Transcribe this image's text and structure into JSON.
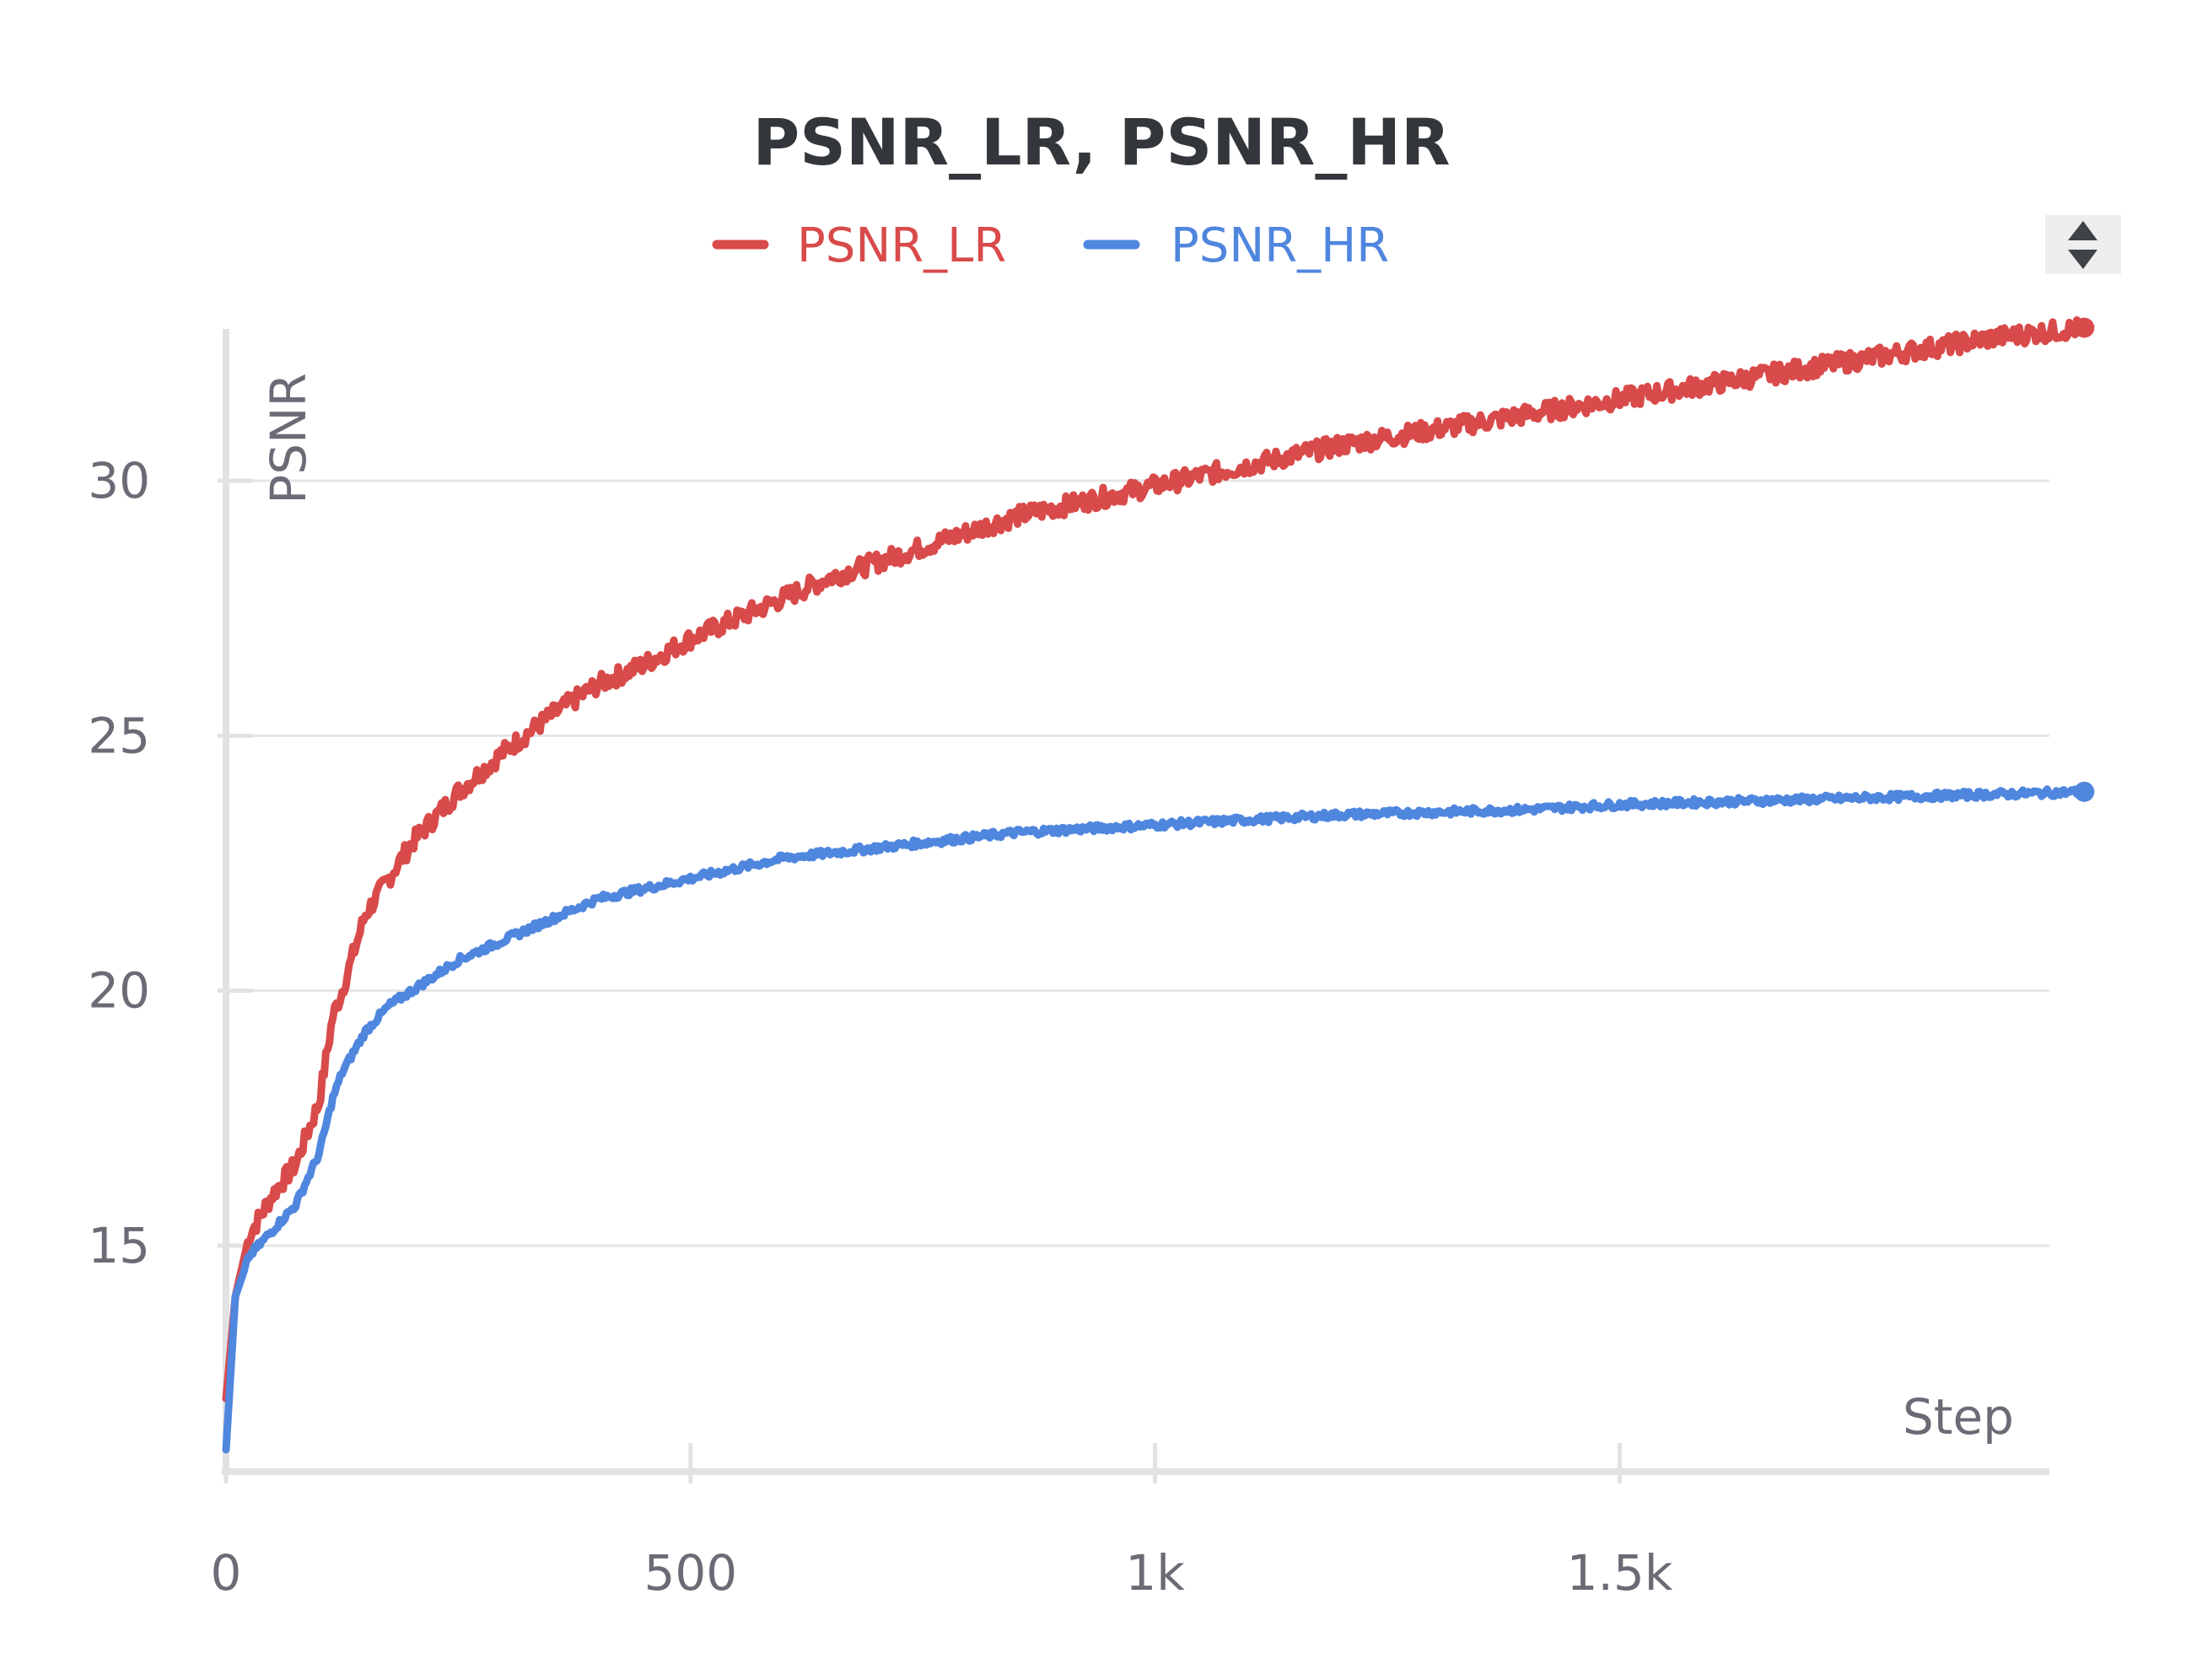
{
  "chart_data": {
    "type": "line",
    "title": "PSNR_LR, PSNR_HR",
    "xlabel": "Step",
    "ylabel": "PSNR",
    "xlim": [
      0,
      2000
    ],
    "ylim": [
      10.8,
      33
    ],
    "x_ticks": [
      {
        "value": 0,
        "label": "0"
      },
      {
        "value": 500,
        "label": "500"
      },
      {
        "value": 1000,
        "label": "1k"
      },
      {
        "value": 1500,
        "label": "1.5k"
      }
    ],
    "y_ticks": [
      {
        "value": 15,
        "label": "15"
      },
      {
        "value": 20,
        "label": "20"
      },
      {
        "value": 25,
        "label": "25"
      },
      {
        "value": 30,
        "label": "30"
      }
    ],
    "grid": true,
    "legend_position": "top-center",
    "series": [
      {
        "name": "PSNR_LR",
        "color": "#d94a4a",
        "x": [
          0,
          10,
          25,
          50,
          75,
          100,
          115,
          125,
          150,
          175,
          200,
          250,
          300,
          350,
          400,
          450,
          500,
          550,
          600,
          650,
          700,
          750,
          800,
          850,
          900,
          950,
          1000,
          1100,
          1200,
          1300,
          1400,
          1500,
          1600,
          1700,
          1800,
          1900,
          2000
        ],
        "values": [
          12.0,
          14.0,
          15.2,
          16.0,
          16.6,
          17.8,
          19.5,
          20.0,
          21.5,
          22.2,
          22.9,
          23.9,
          24.7,
          25.4,
          26.0,
          26.4,
          26.9,
          27.3,
          27.7,
          28.1,
          28.4,
          28.7,
          29.0,
          29.3,
          29.5,
          29.7,
          29.9,
          30.3,
          30.7,
          31.0,
          31.3,
          31.6,
          31.9,
          32.2,
          32.5,
          32.8,
          33.0
        ]
      },
      {
        "name": "PSNR_HR",
        "color": "#4f86de",
        "x": [
          0,
          10,
          25,
          50,
          75,
          100,
          115,
          125,
          150,
          175,
          200,
          250,
          300,
          350,
          400,
          450,
          500,
          550,
          600,
          650,
          700,
          750,
          800,
          850,
          900,
          950,
          1000,
          1100,
          1200,
          1300,
          1400,
          1500,
          1600,
          1700,
          1800,
          1900,
          2000
        ],
        "values": [
          11.0,
          14.0,
          14.8,
          15.3,
          15.8,
          16.8,
          17.9,
          18.4,
          19.2,
          19.7,
          20.0,
          20.6,
          21.0,
          21.4,
          21.8,
          22.0,
          22.2,
          22.4,
          22.6,
          22.7,
          22.8,
          22.9,
          23.0,
          23.1,
          23.15,
          23.2,
          23.25,
          23.35,
          23.45,
          23.5,
          23.55,
          23.65,
          23.7,
          23.75,
          23.8,
          23.85,
          23.9
        ]
      }
    ]
  }
}
